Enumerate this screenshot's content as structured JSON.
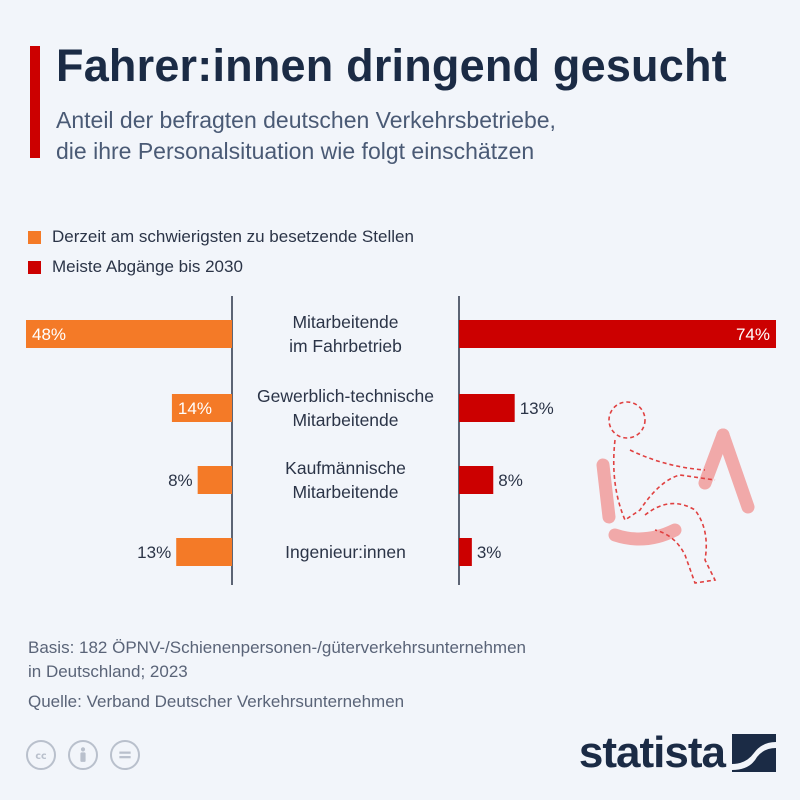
{
  "header": {
    "title": "Fahrer:innen dringend gesucht",
    "subtitle_line1": "Anteil der befragten deutschen Verkehrsbetriebe,",
    "subtitle_line2": "die ihre Personalsituation wie folgt einschätzen"
  },
  "colors": {
    "left": "#f47a27",
    "right": "#cc0000",
    "axis": "#2b3447",
    "accent": "#cc0000"
  },
  "chart_data": {
    "type": "bar",
    "orientation": "horizontal-butterfly",
    "categories": [
      [
        "Mitarbeitende",
        "im Fahrbetrieb"
      ],
      [
        "Gewerblich-technische",
        "Mitarbeitende"
      ],
      [
        "Kaufmännische",
        "Mitarbeitende"
      ],
      [
        "Ingenieur:innen"
      ]
    ],
    "series": [
      {
        "name": "Derzeit am schwierigsten zu besetzende Stellen",
        "values": [
          48,
          14,
          8,
          13
        ],
        "labels": [
          "48%",
          "14%",
          "8%",
          "13%"
        ]
      },
      {
        "name": "Meiste Abgänge bis 2030",
        "values": [
          74,
          13,
          8,
          3
        ],
        "labels": [
          "74%",
          "13%",
          "8%",
          "3%"
        ]
      }
    ],
    "legend": "top-left",
    "unit": "%"
  },
  "footer": {
    "basis_line1": "Basis: 182 ÖPNV-/Schienenpersonen-/güterverkehrsunternehmen",
    "basis_line2": "in Deutschland; 2023",
    "source": "Quelle: Verband Deutscher Verkehrsunternehmen"
  },
  "license_icons": [
    "cc-icon",
    "by-person-icon",
    "nd-equals-icon"
  ],
  "brand": {
    "name": "statista"
  }
}
